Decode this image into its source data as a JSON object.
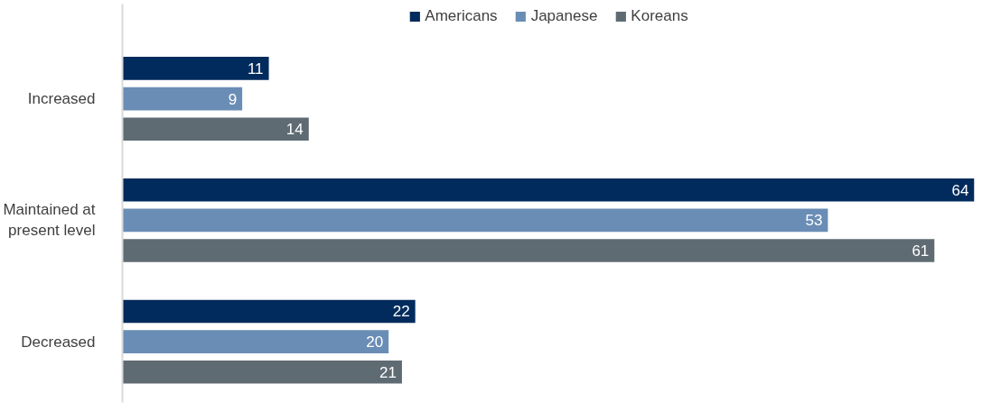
{
  "chart_data": {
    "type": "bar",
    "orientation": "horizontal",
    "categories": [
      "Increased",
      "Maintained at present level",
      "Decreased"
    ],
    "series": [
      {
        "name": "Americans",
        "color": "#002b5c",
        "values": [
          11,
          64,
          22
        ]
      },
      {
        "name": "Japanese",
        "color": "#6a8db5",
        "values": [
          9,
          53,
          20
        ]
      },
      {
        "name": "Koreans",
        "color": "#5f6b73",
        "values": [
          14,
          61,
          21
        ]
      }
    ],
    "xlim": [
      0,
      64
    ],
    "data_labels": true,
    "legend": "top",
    "grid": false,
    "tick_labels": "y"
  }
}
